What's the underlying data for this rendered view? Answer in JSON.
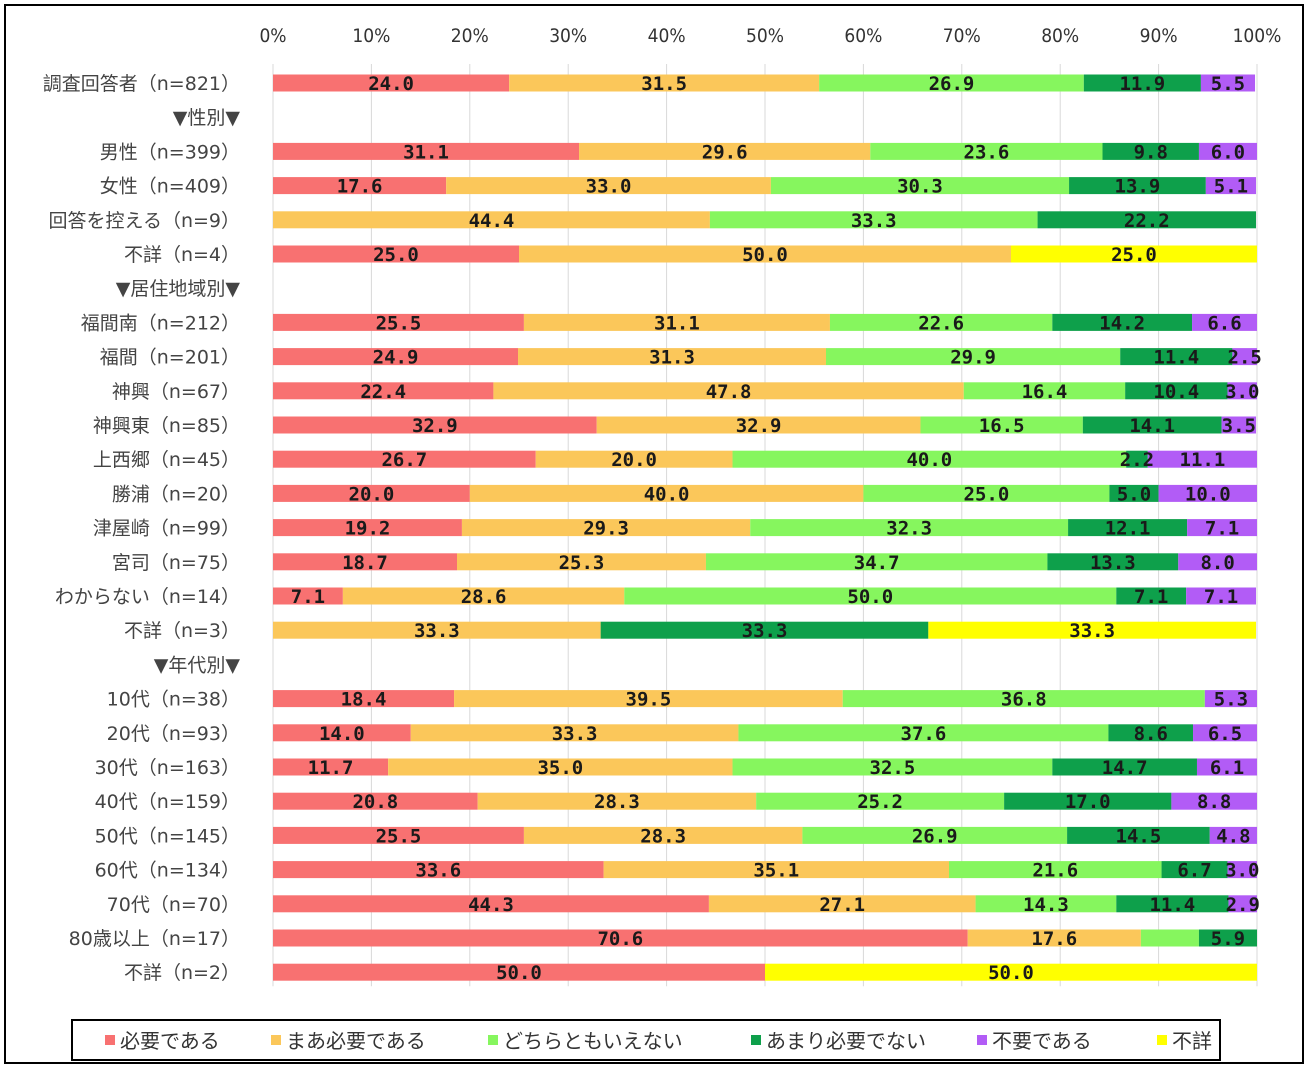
{
  "chart_data": {
    "type": "bar",
    "orientation": "horizontal",
    "stacked": "100%",
    "x_ticks": [
      "0%",
      "10%",
      "20%",
      "30%",
      "40%",
      "50%",
      "60%",
      "70%",
      "80%",
      "90%",
      "100%"
    ],
    "xlim": [
      0,
      100
    ],
    "grid": true,
    "legend_position": "bottom",
    "legend": [
      "必要である",
      "まあ必要である",
      "どちらともいえない",
      "あまり必要でない",
      "不要である",
      "不詳"
    ],
    "colors": [
      "#f87171",
      "#fbc75a",
      "#86f65e",
      "#0ea04b",
      "#b25cf6",
      "#ffff00"
    ],
    "rows": [
      {
        "label": "調査回答者（n=821）",
        "values": [
          24.0,
          31.5,
          26.9,
          11.9,
          5.5,
          0
        ]
      },
      {
        "label": "▼性別▼",
        "header": true
      },
      {
        "label": "男性（n=399）",
        "values": [
          31.1,
          29.6,
          23.6,
          9.8,
          6.0,
          0
        ]
      },
      {
        "label": "女性（n=409）",
        "values": [
          17.6,
          33.0,
          30.3,
          13.9,
          5.1,
          0
        ]
      },
      {
        "label": "回答を控える（n=9）",
        "values": [
          0,
          44.4,
          33.3,
          22.2,
          0,
          0
        ]
      },
      {
        "label": "不詳（n=4）",
        "values": [
          25.0,
          50.0,
          0,
          0,
          0,
          25.0
        ]
      },
      {
        "label": "▼居住地域別▼",
        "header": true
      },
      {
        "label": "福間南（n=212）",
        "values": [
          25.5,
          31.1,
          22.6,
          14.2,
          6.6,
          0
        ]
      },
      {
        "label": "福間（n=201）",
        "values": [
          24.9,
          31.3,
          29.9,
          11.4,
          2.5,
          0
        ]
      },
      {
        "label": "神興（n=67）",
        "values": [
          22.4,
          47.8,
          16.4,
          10.4,
          3.0,
          0
        ]
      },
      {
        "label": "神興東（n=85）",
        "values": [
          32.9,
          32.9,
          16.5,
          14.1,
          3.5,
          0
        ]
      },
      {
        "label": "上西郷（n=45）",
        "values": [
          26.7,
          20.0,
          40.0,
          2.2,
          11.1,
          0
        ]
      },
      {
        "label": "勝浦（n=20）",
        "values": [
          20.0,
          40.0,
          25.0,
          5.0,
          10.0,
          0
        ]
      },
      {
        "label": "津屋崎（n=99）",
        "values": [
          19.2,
          29.3,
          32.3,
          12.1,
          7.1,
          0
        ]
      },
      {
        "label": "宮司（n=75）",
        "values": [
          18.7,
          25.3,
          34.7,
          13.3,
          8.0,
          0
        ]
      },
      {
        "label": "わからない（n=14）",
        "values": [
          7.1,
          28.6,
          50.0,
          7.1,
          7.1,
          0
        ]
      },
      {
        "label": "不詳（n=3）",
        "values": [
          0,
          33.3,
          0,
          33.3,
          0,
          33.3
        ]
      },
      {
        "label": "▼年代別▼",
        "header": true
      },
      {
        "label": "10代（n=38）",
        "values": [
          18.4,
          39.5,
          36.8,
          0,
          5.3,
          0
        ]
      },
      {
        "label": "20代（n=93）",
        "values": [
          14.0,
          33.3,
          37.6,
          8.6,
          6.5,
          0
        ]
      },
      {
        "label": "30代（n=163）",
        "values": [
          11.7,
          35.0,
          32.5,
          14.7,
          6.1,
          0
        ]
      },
      {
        "label": "40代（n=159）",
        "values": [
          20.8,
          28.3,
          25.2,
          17.0,
          8.8,
          0
        ]
      },
      {
        "label": "50代（n=145）",
        "values": [
          25.5,
          28.3,
          26.9,
          14.5,
          4.8,
          0
        ]
      },
      {
        "label": "60代（n=134）",
        "values": [
          33.6,
          35.1,
          21.6,
          6.7,
          3.0,
          0
        ]
      },
      {
        "label": "70代（n=70）",
        "values": [
          44.3,
          27.1,
          14.3,
          11.4,
          2.9,
          0
        ]
      },
      {
        "label": "80歳以上（n=17）",
        "values": [
          70.6,
          17.6,
          5.9,
          5.9,
          0,
          0
        ],
        "labels": [
          "70.6",
          "17.6",
          "",
          "5.9",
          "",
          ""
        ]
      },
      {
        "label": "不詳（n=2）",
        "values": [
          50.0,
          0,
          0,
          0,
          0,
          50.0
        ]
      }
    ]
  }
}
